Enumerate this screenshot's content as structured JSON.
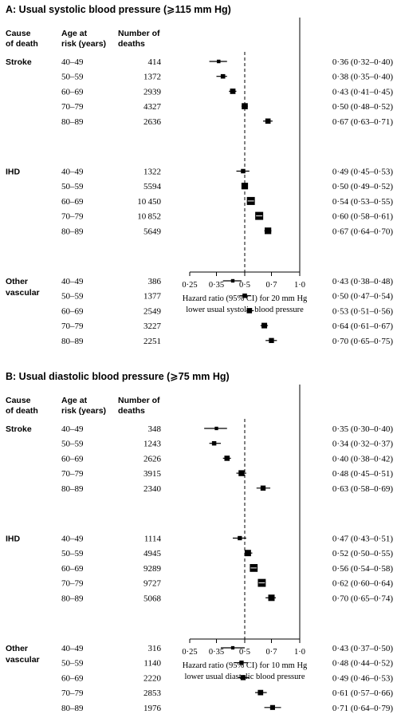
{
  "chart_data": [
    {
      "type": "forest",
      "title": "A: Usual systolic blood pressure (⩾115 mm Hg)",
      "headers": {
        "cause": [
          "Cause",
          "of death"
        ],
        "age": [
          "Age at",
          "risk (years)"
        ],
        "deaths": [
          "Number of",
          "deaths"
        ]
      },
      "xlabel": [
        "Hazard ratio (95% CI) for 20 mm Hg",
        "lower usual systolic blood pressure"
      ],
      "xscale": "log",
      "xlim": [
        0.25,
        1.0
      ],
      "ticks": [
        "0·25",
        "0·35",
        "0·5",
        "0·7",
        "1·0"
      ],
      "reference_line": 0.5,
      "groups": [
        {
          "name": [
            "Stroke"
          ],
          "rows": [
            {
              "age": "40–49",
              "deaths": "414",
              "hr": 0.36,
              "lo": 0.32,
              "hi": 0.4,
              "label": "0·36 (0·32–0·40)"
            },
            {
              "age": "50–59",
              "deaths": "1372",
              "hr": 0.38,
              "lo": 0.35,
              "hi": 0.4,
              "label": "0·38 (0·35–0·40)"
            },
            {
              "age": "60–69",
              "deaths": "2939",
              "hr": 0.43,
              "lo": 0.41,
              "hi": 0.45,
              "label": "0·43 (0·41–0·45)"
            },
            {
              "age": "70–79",
              "deaths": "4327",
              "hr": 0.5,
              "lo": 0.48,
              "hi": 0.52,
              "label": "0·50 (0·48–0·52)"
            },
            {
              "age": "80–89",
              "deaths": "2636",
              "hr": 0.67,
              "lo": 0.63,
              "hi": 0.71,
              "label": "0·67 (0·63–0·71)"
            }
          ]
        },
        {
          "name": [
            "IHD"
          ],
          "rows": [
            {
              "age": "40–49",
              "deaths": "1322",
              "hr": 0.49,
              "lo": 0.45,
              "hi": 0.53,
              "label": "0·49 (0·45–0·53)"
            },
            {
              "age": "50–59",
              "deaths": "5594",
              "hr": 0.5,
              "lo": 0.49,
              "hi": 0.52,
              "label": "0·50 (0·49–0·52)"
            },
            {
              "age": "60–69",
              "deaths": "10 450",
              "hr": 0.54,
              "lo": 0.53,
              "hi": 0.55,
              "label": "0·54 (0·53–0·55)"
            },
            {
              "age": "70–79",
              "deaths": "10 852",
              "hr": 0.6,
              "lo": 0.58,
              "hi": 0.61,
              "label": "0·60 (0·58–0·61)"
            },
            {
              "age": "80–89",
              "deaths": "5649",
              "hr": 0.67,
              "lo": 0.64,
              "hi": 0.7,
              "label": "0·67 (0·64–0·70)"
            }
          ]
        },
        {
          "name": [
            "Other",
            "vascular"
          ],
          "rows": [
            {
              "age": "40–49",
              "deaths": "386",
              "hr": 0.43,
              "lo": 0.38,
              "hi": 0.48,
              "label": "0·43 (0·38–0·48)"
            },
            {
              "age": "50–59",
              "deaths": "1377",
              "hr": 0.5,
              "lo": 0.47,
              "hi": 0.54,
              "label": "0·50 (0·47–0·54)"
            },
            {
              "age": "60–69",
              "deaths": "2549",
              "hr": 0.53,
              "lo": 0.51,
              "hi": 0.56,
              "label": "0·53 (0·51–0·56)"
            },
            {
              "age": "70–79",
              "deaths": "3227",
              "hr": 0.64,
              "lo": 0.61,
              "hi": 0.67,
              "label": "0·64 (0·61–0·67)"
            },
            {
              "age": "80–89",
              "deaths": "2251",
              "hr": 0.7,
              "lo": 0.65,
              "hi": 0.75,
              "label": "0·70 (0·65–0·75)"
            }
          ]
        }
      ]
    },
    {
      "type": "forest",
      "title": "B: Usual diastolic blood pressure (⩾75 mm Hg)",
      "headers": {
        "cause": [
          "Cause",
          "of death"
        ],
        "age": [
          "Age at",
          "risk (years)"
        ],
        "deaths": [
          "Number of",
          "deaths"
        ]
      },
      "xlabel": [
        "Hazard ratio (95% CI) for 10 mm Hg",
        "lower usual diastolic blood pressure"
      ],
      "xscale": "log",
      "xlim": [
        0.25,
        1.0
      ],
      "ticks": [
        "0·25",
        "0·35",
        "0·5",
        "0·7",
        "1·0"
      ],
      "reference_line": 0.5,
      "groups": [
        {
          "name": [
            "Stroke"
          ],
          "rows": [
            {
              "age": "40–49",
              "deaths": "348",
              "hr": 0.35,
              "lo": 0.3,
              "hi": 0.4,
              "label": "0·35 (0·30–0·40)"
            },
            {
              "age": "50–59",
              "deaths": "1243",
              "hr": 0.34,
              "lo": 0.32,
              "hi": 0.37,
              "label": "0·34 (0·32–0·37)"
            },
            {
              "age": "60–69",
              "deaths": "2626",
              "hr": 0.4,
              "lo": 0.38,
              "hi": 0.42,
              "label": "0·40 (0·38–0·42)"
            },
            {
              "age": "70–79",
              "deaths": "3915",
              "hr": 0.48,
              "lo": 0.45,
              "hi": 0.51,
              "label": "0·48 (0·45–0·51)"
            },
            {
              "age": "80–89",
              "deaths": "2340",
              "hr": 0.63,
              "lo": 0.58,
              "hi": 0.69,
              "label": "0·63 (0·58–0·69)"
            }
          ]
        },
        {
          "name": [
            "IHD"
          ],
          "rows": [
            {
              "age": "40–49",
              "deaths": "1114",
              "hr": 0.47,
              "lo": 0.43,
              "hi": 0.51,
              "label": "0·47 (0·43–0·51)"
            },
            {
              "age": "50–59",
              "deaths": "4945",
              "hr": 0.52,
              "lo": 0.5,
              "hi": 0.55,
              "label": "0·52 (0·50–0·55)"
            },
            {
              "age": "60–69",
              "deaths": "9289",
              "hr": 0.56,
              "lo": 0.54,
              "hi": 0.58,
              "label": "0·56 (0·54–0·58)"
            },
            {
              "age": "70–79",
              "deaths": "9727",
              "hr": 0.62,
              "lo": 0.6,
              "hi": 0.64,
              "label": "0·62 (0·60–0·64)"
            },
            {
              "age": "80–89",
              "deaths": "5068",
              "hr": 0.7,
              "lo": 0.65,
              "hi": 0.74,
              "label": "0·70 (0·65–0·74)"
            }
          ]
        },
        {
          "name": [
            "Other",
            "vascular"
          ],
          "rows": [
            {
              "age": "40–49",
              "deaths": "316",
              "hr": 0.43,
              "lo": 0.37,
              "hi": 0.5,
              "label": "0·43 (0·37–0·50)"
            },
            {
              "age": "50–59",
              "deaths": "1140",
              "hr": 0.48,
              "lo": 0.44,
              "hi": 0.52,
              "label": "0·48 (0·44–0·52)"
            },
            {
              "age": "60–69",
              "deaths": "2220",
              "hr": 0.49,
              "lo": 0.46,
              "hi": 0.53,
              "label": "0·49 (0·46–0·53)"
            },
            {
              "age": "70–79",
              "deaths": "2853",
              "hr": 0.61,
              "lo": 0.57,
              "hi": 0.66,
              "label": "0·61 (0·57–0·66)"
            },
            {
              "age": "80–89",
              "deaths": "1976",
              "hr": 0.71,
              "lo": 0.64,
              "hi": 0.79,
              "label": "0·71 (0·64–0·79)"
            }
          ]
        }
      ]
    }
  ]
}
